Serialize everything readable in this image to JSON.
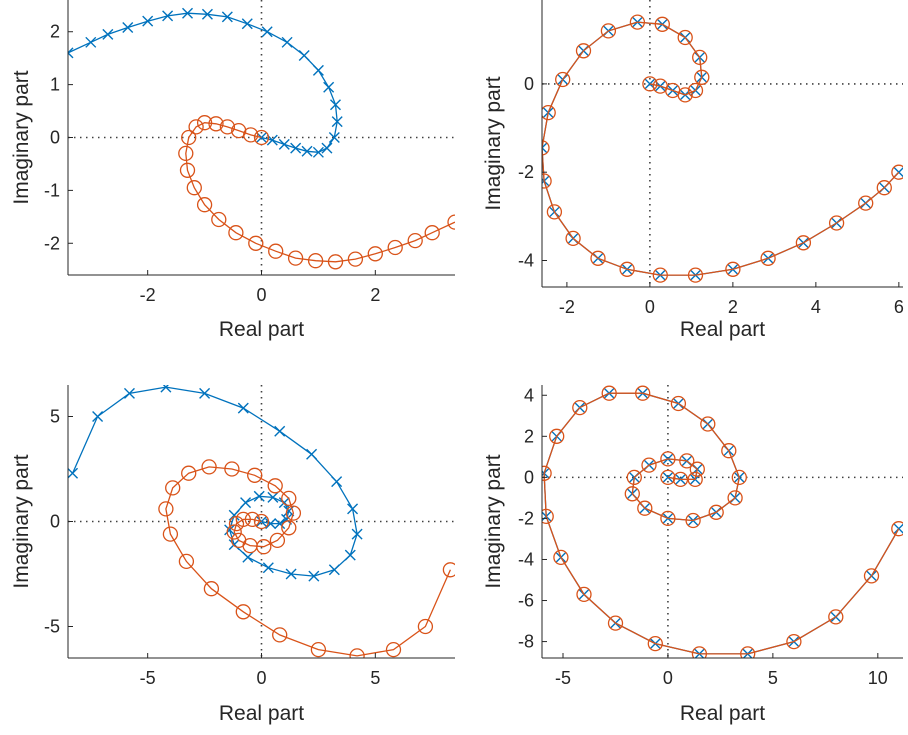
{
  "colors": {
    "series1": "#0072BD",
    "series2": "#D95319",
    "axis": "#262626",
    "zero_line": "#404040"
  },
  "chart_data": [
    {
      "type": "scatter",
      "xlabel": "Real part",
      "ylabel": "Imaginary part",
      "xlim": [
        -3.4,
        3.4
      ],
      "ylim": [
        -2.6,
        2.6
      ],
      "xticks": [
        -2,
        0,
        2
      ],
      "xtick_labels": [
        "-2",
        "0",
        "2"
      ],
      "yticks": [
        -2,
        -1,
        0,
        1,
        2
      ],
      "ytick_labels": [
        "-2",
        "-1",
        "0",
        "1",
        "2"
      ],
      "grid": false,
      "zero_lines": true,
      "series": [
        {
          "marker": "x",
          "color": "#0072BD",
          "connected": true,
          "x": [
            0.0,
            0.19,
            0.4,
            0.6,
            0.8,
            1.0,
            1.15,
            1.28,
            1.33,
            1.3,
            1.18,
            1.0,
            0.75,
            0.45,
            0.1,
            -0.25,
            -0.6,
            -0.95,
            -1.3,
            -1.65,
            -2.0,
            -2.35,
            -2.7,
            -3.0,
            -3.4
          ],
          "y": [
            0.0,
            -0.05,
            -0.13,
            -0.2,
            -0.26,
            -0.28,
            -0.2,
            0.0,
            0.3,
            0.62,
            0.95,
            1.27,
            1.55,
            1.8,
            2.0,
            2.15,
            2.28,
            2.33,
            2.35,
            2.3,
            2.2,
            2.08,
            1.95,
            1.8,
            1.6
          ]
        },
        {
          "marker": "o",
          "color": "#D95319",
          "connected": true,
          "x": [
            0.0,
            -0.19,
            -0.4,
            -0.6,
            -0.8,
            -1.0,
            -1.15,
            -1.28,
            -1.33,
            -1.3,
            -1.18,
            -1.0,
            -0.75,
            -0.45,
            -0.1,
            0.25,
            0.6,
            0.95,
            1.3,
            1.65,
            2.0,
            2.35,
            2.7,
            3.0,
            3.4
          ],
          "y": [
            0.0,
            0.05,
            0.13,
            0.2,
            0.26,
            0.28,
            0.2,
            0.0,
            -0.3,
            -0.62,
            -0.95,
            -1.27,
            -1.55,
            -1.8,
            -2.0,
            -2.15,
            -2.28,
            -2.33,
            -2.35,
            -2.3,
            -2.2,
            -2.08,
            -1.95,
            -1.8,
            -1.6
          ]
        }
      ]
    },
    {
      "type": "scatter",
      "xlabel": "Real part",
      "ylabel": "Imaginary part",
      "xlim": [
        -2.6,
        6.1
      ],
      "ylim": [
        -4.6,
        1.9
      ],
      "xticks": [
        -2,
        0,
        2,
        4,
        6
      ],
      "xtick_labels": [
        "-2",
        "0",
        "2",
        "4",
        "6"
      ],
      "yticks": [
        -4,
        -2,
        0
      ],
      "ytick_labels": [
        "-4",
        "-2",
        "0"
      ],
      "grid": false,
      "zero_lines": true,
      "series": [
        {
          "marker": "x",
          "color": "#0072BD",
          "connected": true,
          "x": [
            0.0,
            0.25,
            0.55,
            0.85,
            1.1,
            1.25,
            1.2,
            0.85,
            0.3,
            -0.3,
            -1.0,
            -1.6,
            -2.1,
            -2.45,
            -2.6,
            -2.55,
            -2.3,
            -1.85,
            -1.25,
            -0.55,
            0.25,
            1.1,
            2.0,
            2.85,
            3.7,
            4.5,
            5.2,
            5.65,
            6.0
          ],
          "y": [
            0.0,
            -0.05,
            -0.15,
            -0.25,
            -0.15,
            0.15,
            0.6,
            1.05,
            1.35,
            1.4,
            1.2,
            0.75,
            0.1,
            -0.65,
            -1.45,
            -2.2,
            -2.9,
            -3.5,
            -3.95,
            -4.2,
            -4.33,
            -4.33,
            -4.2,
            -3.95,
            -3.6,
            -3.15,
            -2.7,
            -2.35,
            -2.0
          ]
        },
        {
          "marker": "o",
          "color": "#D95319",
          "connected": true,
          "x": [
            0.0,
            0.25,
            0.55,
            0.85,
            1.1,
            1.25,
            1.2,
            0.85,
            0.3,
            -0.3,
            -1.0,
            -1.6,
            -2.1,
            -2.45,
            -2.6,
            -2.55,
            -2.3,
            -1.85,
            -1.25,
            -0.55,
            0.25,
            1.1,
            2.0,
            2.85,
            3.7,
            4.5,
            5.2,
            5.65,
            6.0
          ],
          "y": [
            0.0,
            -0.05,
            -0.15,
            -0.25,
            -0.15,
            0.15,
            0.6,
            1.05,
            1.35,
            1.4,
            1.2,
            0.75,
            0.1,
            -0.65,
            -1.45,
            -2.2,
            -2.9,
            -3.5,
            -3.95,
            -4.2,
            -4.33,
            -4.33,
            -4.2,
            -3.95,
            -3.6,
            -3.15,
            -2.7,
            -2.35,
            -2.0
          ]
        }
      ]
    },
    {
      "type": "scatter",
      "xlabel": "Real part",
      "ylabel": "Imaginary part",
      "xlim": [
        -8.5,
        8.5
      ],
      "ylim": [
        -6.5,
        6.5
      ],
      "xticks": [
        -5,
        0,
        5
      ],
      "xtick_labels": [
        "-5",
        "0",
        "5"
      ],
      "yticks": [
        -5,
        0,
        5
      ],
      "ytick_labels": [
        "-5",
        "0",
        "5"
      ],
      "grid": false,
      "zero_lines": true,
      "series": [
        {
          "marker": "x",
          "color": "#0072BD",
          "connected": true,
          "x": [
            0.0,
            0.4,
            0.8,
            1.1,
            1.2,
            1.0,
            0.5,
            -0.1,
            -0.7,
            -1.2,
            -1.4,
            -1.2,
            -0.6,
            0.3,
            1.3,
            2.3,
            3.2,
            3.9,
            4.2,
            4.0,
            3.3,
            2.2,
            0.8,
            -0.8,
            -2.5,
            -4.2,
            -5.8,
            -7.2,
            -8.3
          ],
          "y": [
            0.0,
            -0.1,
            -0.1,
            0.1,
            0.5,
            0.9,
            1.15,
            1.2,
            0.9,
            0.3,
            -0.4,
            -1.1,
            -1.7,
            -2.2,
            -2.5,
            -2.6,
            -2.3,
            -1.6,
            -0.6,
            0.6,
            1.9,
            3.2,
            4.3,
            5.4,
            6.1,
            6.4,
            6.1,
            5.0,
            2.3
          ]
        },
        {
          "marker": "o",
          "color": "#D95319",
          "connected": true,
          "x": [
            0.0,
            -0.4,
            -0.8,
            -1.1,
            -1.2,
            -1.0,
            -0.5,
            0.1,
            0.7,
            1.2,
            1.4,
            1.2,
            0.6,
            -0.3,
            -1.3,
            -2.3,
            -3.2,
            -3.9,
            -4.2,
            -4.0,
            -3.3,
            -2.2,
            -0.8,
            0.8,
            2.5,
            4.2,
            5.8,
            7.2,
            8.3
          ],
          "y": [
            0.0,
            0.1,
            0.1,
            -0.1,
            -0.5,
            -0.9,
            -1.15,
            -1.2,
            -0.9,
            -0.3,
            0.4,
            1.1,
            1.7,
            2.2,
            2.5,
            2.6,
            2.3,
            1.6,
            0.6,
            -0.6,
            -1.9,
            -3.2,
            -4.3,
            -5.4,
            -6.1,
            -6.4,
            -6.1,
            -5.0,
            -2.3
          ]
        }
      ]
    },
    {
      "type": "scatter",
      "xlabel": "Real part",
      "ylabel": "Imaginary part",
      "xlim": [
        -6,
        11.2
      ],
      "ylim": [
        -8.8,
        4.5
      ],
      "xticks": [
        -5,
        0,
        5,
        10
      ],
      "xtick_labels": [
        "-5",
        "0",
        "5",
        "10"
      ],
      "yticks": [
        -8,
        -6,
        -4,
        -2,
        0,
        2,
        4
      ],
      "ytick_labels": [
        "-8",
        "-6",
        "-4",
        "-2",
        "0",
        "2",
        "4"
      ],
      "grid": false,
      "zero_lines": true,
      "series": [
        {
          "marker": "x",
          "color": "#0072BD",
          "connected": true,
          "x": [
            0.0,
            0.6,
            1.3,
            1.4,
            0.9,
            0.0,
            -0.9,
            -1.6,
            -1.7,
            -1.1,
            0.0,
            1.2,
            2.3,
            3.2,
            3.4,
            2.9,
            1.9,
            0.5,
            -1.2,
            -2.8,
            -4.2,
            -5.3,
            -5.9,
            -5.8,
            -5.1,
            -4.0,
            -2.5,
            -0.6,
            1.5,
            3.8,
            6.0,
            8.0,
            9.7,
            11.0
          ],
          "y": [
            0.0,
            -0.1,
            -0.1,
            0.4,
            0.8,
            0.9,
            0.6,
            0.0,
            -0.8,
            -1.5,
            -2.0,
            -2.1,
            -1.7,
            -1.0,
            0.0,
            1.3,
            2.6,
            3.6,
            4.1,
            4.1,
            3.4,
            2.0,
            0.2,
            -1.9,
            -3.9,
            -5.7,
            -7.1,
            -8.1,
            -8.6,
            -8.6,
            -8.0,
            -6.8,
            -4.8,
            -2.5
          ]
        },
        {
          "marker": "o",
          "color": "#D95319",
          "connected": true,
          "x": [
            0.0,
            0.6,
            1.3,
            1.4,
            0.9,
            0.0,
            -0.9,
            -1.6,
            -1.7,
            -1.1,
            0.0,
            1.2,
            2.3,
            3.2,
            3.4,
            2.9,
            1.9,
            0.5,
            -1.2,
            -2.8,
            -4.2,
            -5.3,
            -5.9,
            -5.8,
            -5.1,
            -4.0,
            -2.5,
            -0.6,
            1.5,
            3.8,
            6.0,
            8.0,
            9.7,
            11.0
          ],
          "y": [
            0.0,
            -0.1,
            -0.1,
            0.4,
            0.8,
            0.9,
            0.6,
            0.0,
            -0.8,
            -1.5,
            -2.0,
            -2.1,
            -1.7,
            -1.0,
            0.0,
            1.3,
            2.6,
            3.6,
            4.1,
            4.1,
            3.4,
            2.0,
            0.2,
            -1.9,
            -3.9,
            -5.7,
            -7.1,
            -8.1,
            -8.6,
            -8.6,
            -8.0,
            -6.8,
            -4.8,
            -2.5
          ]
        }
      ]
    }
  ]
}
